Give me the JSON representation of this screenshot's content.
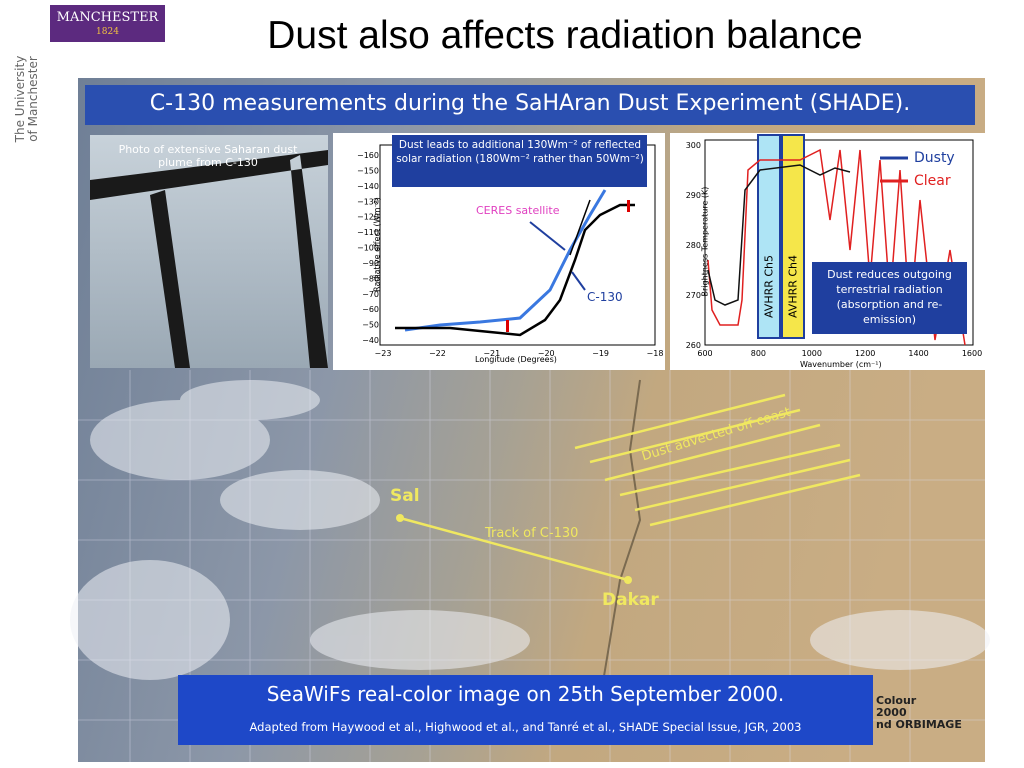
{
  "header": {
    "logo": "MANCHESTER",
    "logo_year": "1824",
    "side_text_1": "The University",
    "side_text_2": "of Manchester",
    "title": "Dust also affects radiation balance"
  },
  "banner": "C-130 measurements during the SaHAran Dust Experiment (SHADE).",
  "photo_caption": "Photo of extensive Saharan dust plume from C-130",
  "left_plot": {
    "callout": "Dust leads to additional 130Wm⁻² of reflected solar radiation (180Wm⁻² rather than 50Wm⁻²)",
    "y_label": "Radiative effect (Wm⁻²)",
    "x_label": "Longitude (Degrees)",
    "yticks": [
      "−160",
      "−150",
      "−140",
      "−130",
      "−120",
      "−110",
      "−100",
      "−90",
      "−80",
      "−70",
      "−60",
      "−50",
      "−40"
    ],
    "xticks": [
      "−23",
      "−22",
      "−21",
      "−20",
      "−19",
      "−18"
    ],
    "ceres_label": "CERES satellite",
    "c130_label": "C-130"
  },
  "right_plot": {
    "legend_dusty": "Dusty",
    "legend_clear": "Clear",
    "ch5": "AVHRR Ch5",
    "ch4": "AVHRR Ch4",
    "callout": "Dust reduces outgoing terrestrial radiation (absorption and re-emission)",
    "y_label": "Brightness Temperature (K)",
    "x_label": "Wavenumber (cm⁻¹)",
    "yticks": [
      "300",
      "290",
      "280",
      "270",
      "260"
    ],
    "xticks": [
      "600",
      "800",
      "1000",
      "1200",
      "1400",
      "1600"
    ]
  },
  "map": {
    "sal": "Sal",
    "dakar": "Dakar",
    "track": "Track of C-130",
    "dust": "Dust advected off coast",
    "footer_title": "SeaWiFs real-color image on 25th September 2000.",
    "footer_source": "Adapted from Haywood et al., Highwood et al., and Tanré et al., SHADE Special Issue, JGR, 2003",
    "credit_1": "Colour",
    "credit_2": "2000",
    "credit_3": "nd ORBIMAGE"
  }
}
